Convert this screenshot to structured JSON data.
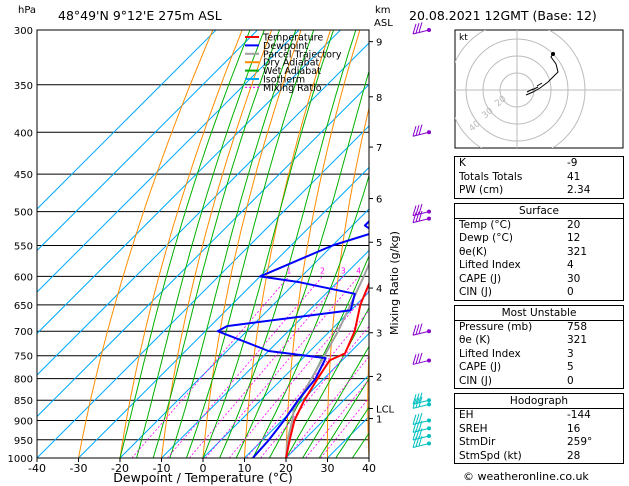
{
  "header": {
    "station": "48°49'N  9°12'E  275m  ASL",
    "datetime": "20.08.2021  12GMT  (Base: 12)",
    "y_unit_left": "hPa",
    "y_unit_right_1": "km",
    "y_unit_right_2": "ASL"
  },
  "legend": [
    {
      "label": "Temperature",
      "color": "#ff0000",
      "dash": ""
    },
    {
      "label": "Dewpoint",
      "color": "#0000ff",
      "dash": ""
    },
    {
      "label": "Parcel Trajectory",
      "color": "#a0a0a0",
      "dash": ""
    },
    {
      "label": "Dry Adiabat",
      "color": "#ff8c00",
      "dash": ""
    },
    {
      "label": "Wet Adiabat",
      "color": "#00b000",
      "dash": ""
    },
    {
      "label": "Isotherm",
      "color": "#00aaff",
      "dash": ""
    },
    {
      "label": "Mixing Ratio",
      "color": "#ff00ff",
      "dash": "2,2"
    }
  ],
  "chart_data": {
    "type": "line",
    "xlabel": "Dewpoint / Temperature (°C)",
    "ylabel_right": "Mixing Ratio (g/kg)",
    "x_ticks": [
      -40,
      -30,
      -20,
      -10,
      0,
      10,
      20,
      30,
      40
    ],
    "x_range": [
      -40,
      40
    ],
    "pressure_ticks": [
      300,
      350,
      400,
      450,
      500,
      550,
      600,
      650,
      700,
      750,
      800,
      850,
      900,
      950,
      1000
    ],
    "km_ticks": [
      {
        "label": "9",
        "p": 310
      },
      {
        "label": "8",
        "p": 362
      },
      {
        "label": "7",
        "p": 417
      },
      {
        "label": "6",
        "p": 482
      },
      {
        "label": "5",
        "p": 545
      },
      {
        "label": "4",
        "p": 620
      },
      {
        "label": "3",
        "p": 703
      },
      {
        "label": "2",
        "p": 795
      },
      {
        "label": "LCL",
        "p": 870
      },
      {
        "label": "1",
        "p": 895
      }
    ],
    "mixing_ratio_labels": [
      "1",
      "2",
      "3",
      "4",
      "6",
      "8",
      "10",
      "15",
      "20",
      "25"
    ],
    "temperature": [
      {
        "p": 1000,
        "t": 20
      },
      {
        "p": 950,
        "t": 16.5
      },
      {
        "p": 900,
        "t": 13
      },
      {
        "p": 850,
        "t": 10.5
      },
      {
        "p": 800,
        "t": 8.5
      },
      {
        "p": 760,
        "t": 7
      },
      {
        "p": 745,
        "t": 9
      },
      {
        "p": 700,
        "t": 6
      },
      {
        "p": 650,
        "t": 1
      },
      {
        "p": 600,
        "t": -3
      },
      {
        "p": 550,
        "t": -7.5
      },
      {
        "p": 500,
        "t": -11.5
      },
      {
        "p": 450,
        "t": -16.5
      },
      {
        "p": 400,
        "t": -22.5
      },
      {
        "p": 350,
        "t": -29
      },
      {
        "p": 320,
        "t": -32
      },
      {
        "p": 300,
        "t": -34
      }
    ],
    "dewpoint": [
      {
        "p": 1000,
        "t": 12
      },
      {
        "p": 950,
        "t": 11.5
      },
      {
        "p": 900,
        "t": 10.5
      },
      {
        "p": 850,
        "t": 9
      },
      {
        "p": 800,
        "t": 8
      },
      {
        "p": 755,
        "t": 5.5
      },
      {
        "p": 740,
        "t": -10
      },
      {
        "p": 700,
        "t": -27
      },
      {
        "p": 690,
        "t": -26
      },
      {
        "p": 660,
        "t": 0
      },
      {
        "p": 630,
        "t": -3
      },
      {
        "p": 610,
        "t": -19
      },
      {
        "p": 600,
        "t": -30
      },
      {
        "p": 550,
        "t": -20
      },
      {
        "p": 530,
        "t": -13
      },
      {
        "p": 520,
        "t": -17
      },
      {
        "p": 500,
        "t": -17
      },
      {
        "p": 470,
        "t": -17.5
      },
      {
        "p": 440,
        "t": -20
      },
      {
        "p": 420,
        "t": -24
      },
      {
        "p": 400,
        "t": -30
      },
      {
        "p": 370,
        "t": -29
      },
      {
        "p": 345,
        "t": -32
      },
      {
        "p": 330,
        "t": -27
      },
      {
        "p": 310,
        "t": -35
      },
      {
        "p": 300,
        "t": -40
      }
    ],
    "parcel": [
      {
        "p": 1000,
        "t": 20
      },
      {
        "p": 950,
        "t": 16
      },
      {
        "p": 900,
        "t": 12.5
      },
      {
        "p": 870,
        "t": 10
      },
      {
        "p": 800,
        "t": 7
      },
      {
        "p": 700,
        "t": 2
      },
      {
        "p": 600,
        "t": -5
      },
      {
        "p": 500,
        "t": -14
      },
      {
        "p": 400,
        "t": -27
      },
      {
        "p": 300,
        "t": -44
      }
    ],
    "wind_barbs_p": [
      300,
      400,
      500,
      510,
      700,
      760,
      850,
      860,
      900,
      920,
      940,
      960
    ]
  },
  "hodograph": {
    "label": "kt",
    "ring_labels": [
      "40",
      "30",
      "20"
    ]
  },
  "indices": [
    {
      "label": "K",
      "value": "-9"
    },
    {
      "label": "Totals Totals",
      "value": "41"
    },
    {
      "label": "PW (cm)",
      "value": "2.34"
    }
  ],
  "surface": {
    "title": "Surface",
    "rows": [
      {
        "label": "Temp (°C)",
        "value": "20"
      },
      {
        "label": "Dewp (°C)",
        "value": "12"
      },
      {
        "label": "θe(K)",
        "value": "321"
      },
      {
        "label": "Lifted Index",
        "value": "4"
      },
      {
        "label": "CAPE (J)",
        "value": "30"
      },
      {
        "label": "CIN (J)",
        "value": "0"
      }
    ]
  },
  "most_unstable": {
    "title": "Most Unstable",
    "rows": [
      {
        "label": "Pressure (mb)",
        "value": "758"
      },
      {
        "label": "θe (K)",
        "value": "321"
      },
      {
        "label": "Lifted Index",
        "value": "3"
      },
      {
        "label": "CAPE (J)",
        "value": "5"
      },
      {
        "label": "CIN (J)",
        "value": "0"
      }
    ]
  },
  "hodograph_table": {
    "title": "Hodograph",
    "rows": [
      {
        "label": "EH",
        "value": "-144"
      },
      {
        "label": "SREH",
        "value": "16"
      },
      {
        "label": "StmDir",
        "value": "259°"
      },
      {
        "label": "StmSpd (kt)",
        "value": "28"
      }
    ]
  },
  "footer": "© weatheronline.co.uk",
  "colors": {
    "temperature": "#ff0000",
    "dewpoint": "#0000ff",
    "parcel": "#a0a0a0",
    "dry_adiabat": "#ff8c00",
    "wet_adiabat": "#00b000",
    "isotherm": "#00aaff",
    "mixing_ratio": "#ff00ff",
    "barb_upper": "#8800cc",
    "barb_lower": "#00c0c0"
  }
}
